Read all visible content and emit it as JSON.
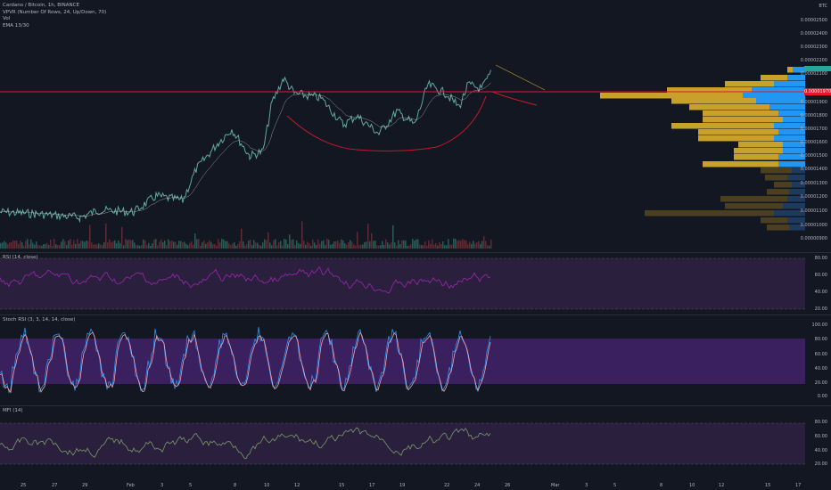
{
  "main_pane": {
    "legend": [
      "Cardano / Bitcoin, 1h, BINANCE",
      "VPVR (Number Of Rows, 24, Up/Down, 70)",
      "Vol",
      "EMA 13/30"
    ],
    "price_labels": [
      "0.00002500",
      "0.00002400",
      "0.00002300",
      "0.00002200",
      "0.00002100",
      "0.00002000",
      "0.00001900",
      "0.00001800",
      "0.00001700",
      "0.00001600",
      "0.00001500",
      "0.00001400",
      "0.00001300",
      "0.00001200",
      "0.00001100",
      "0.00001000",
      "0.00000900"
    ],
    "currency_label": "BTC",
    "current_price_tag": "0.00001970",
    "horizontal_line_price": "0.00001970"
  },
  "rsi_pane": {
    "legend": "RSI (14, close)",
    "levels": [
      "80.00",
      "60.00",
      "40.00",
      "20.00"
    ]
  },
  "stoch_pane": {
    "legend": "Stoch RSI (3, 3, 14, 14, close)",
    "levels": [
      "100.00",
      "80.00",
      "60.00",
      "40.00",
      "20.00",
      "0.00"
    ]
  },
  "mfi_pane": {
    "legend": "MFI (14)",
    "levels": [
      "80.00",
      "60.00",
      "40.00",
      "20.00"
    ]
  },
  "x_axis": [
    "25",
    "27",
    "29",
    "Feb",
    "3",
    "5",
    "8",
    "10",
    "12",
    "15",
    "17",
    "19",
    "22",
    "24",
    "26",
    "Mar",
    "3",
    "5",
    "8",
    "10",
    "12",
    "15",
    "17"
  ],
  "colors": {
    "background": "#131722",
    "red_line": "#e5182a",
    "rsi": "#9c27b0",
    "vpvr_up": "#2196f3",
    "vpvr_down": "#c8a02a"
  }
}
